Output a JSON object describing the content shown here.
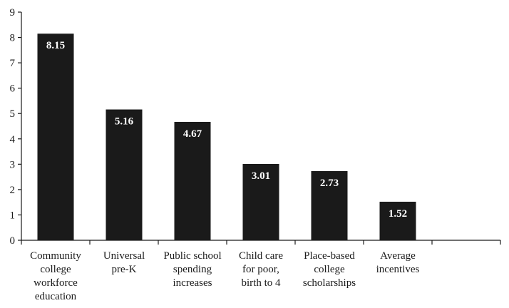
{
  "chart_data": {
    "type": "bar",
    "title": "",
    "xlabel": "",
    "ylabel": "",
    "categories": [
      [
        "Community",
        "college",
        "workforce",
        "education"
      ],
      [
        "Universal",
        "pre-K"
      ],
      [
        "Public school",
        "spending",
        "increases"
      ],
      [
        "Child care",
        "for poor,",
        "birth to 4"
      ],
      [
        "Place-based",
        "college",
        "scholarships"
      ],
      [
        "Average",
        "incentives"
      ],
      [
        ""
      ]
    ],
    "values": [
      8.15,
      5.16,
      4.67,
      3.01,
      2.73,
      1.52,
      null
    ],
    "value_labels": [
      "8.15",
      "5.16",
      "4.67",
      "3.01",
      "2.73",
      "1.52",
      ""
    ],
    "ylim": [
      0,
      9
    ],
    "yticks": [
      "0",
      "1",
      "2",
      "3",
      "4",
      "5",
      "6",
      "7",
      "8",
      "9"
    ],
    "grid": false,
    "legend": "none",
    "bar_color": "#1a1a1a",
    "axis_color": "#1a1a1a",
    "value_label_color": "#ffffff"
  }
}
